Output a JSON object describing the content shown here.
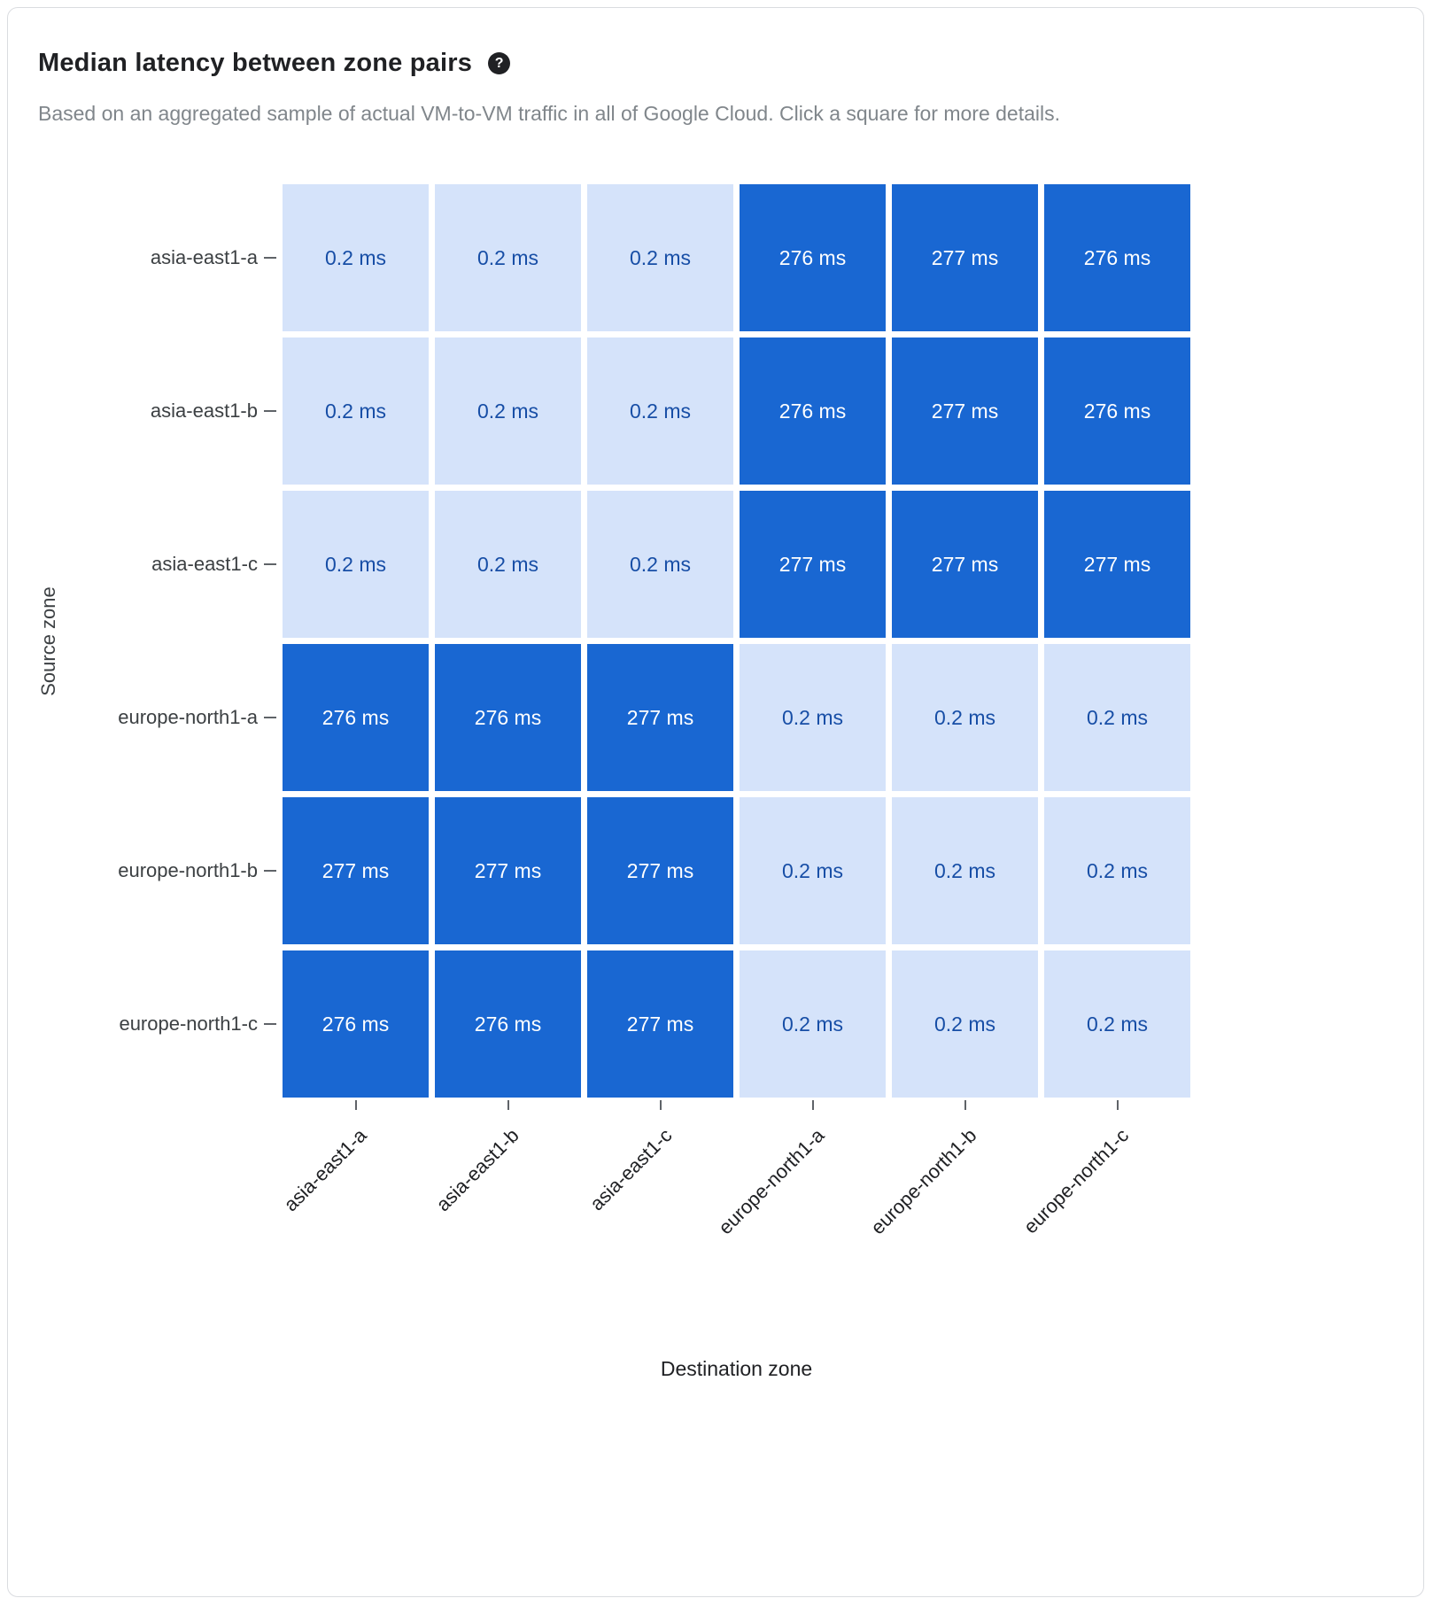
{
  "card": {
    "title": "Median latency between zone pairs",
    "help_glyph": "?",
    "subtitle": "Based on an aggregated sample of actual VM-to-VM traffic in all of Google Cloud. Click a square for more details."
  },
  "chart_data": {
    "type": "heatmap",
    "title": "Median latency between zone pairs",
    "xlabel": "Destination zone",
    "ylabel": "Source zone",
    "unit": "ms",
    "rows": [
      "asia-east1-a",
      "asia-east1-b",
      "asia-east1-c",
      "europe-north1-a",
      "europe-north1-b",
      "europe-north1-c"
    ],
    "columns": [
      "asia-east1-a",
      "asia-east1-b",
      "asia-east1-c",
      "europe-north1-a",
      "europe-north1-b",
      "europe-north1-c"
    ],
    "values_ms": [
      [
        0.2,
        0.2,
        0.2,
        276,
        277,
        276
      ],
      [
        0.2,
        0.2,
        0.2,
        276,
        277,
        276
      ],
      [
        0.2,
        0.2,
        0.2,
        277,
        277,
        277
      ],
      [
        276,
        276,
        277,
        0.2,
        0.2,
        0.2
      ],
      [
        277,
        277,
        277,
        0.2,
        0.2,
        0.2
      ],
      [
        276,
        276,
        277,
        0.2,
        0.2,
        0.2
      ]
    ],
    "cell_labels": [
      [
        "0.2 ms",
        "0.2 ms",
        "0.2 ms",
        "276 ms",
        "277 ms",
        "276 ms"
      ],
      [
        "0.2 ms",
        "0.2 ms",
        "0.2 ms",
        "276 ms",
        "277 ms",
        "276 ms"
      ],
      [
        "0.2 ms",
        "0.2 ms",
        "0.2 ms",
        "277 ms",
        "277 ms",
        "277 ms"
      ],
      [
        "276 ms",
        "276 ms",
        "277 ms",
        "0.2 ms",
        "0.2 ms",
        "0.2 ms"
      ],
      [
        "277 ms",
        "277 ms",
        "277 ms",
        "0.2 ms",
        "0.2 ms",
        "0.2 ms"
      ],
      [
        "276 ms",
        "276 ms",
        "277 ms",
        "0.2 ms",
        "0.2 ms",
        "0.2 ms"
      ]
    ],
    "colors": {
      "low_fill": "#d5e3fa",
      "high_fill": "#1967d2",
      "low_text": "#174ea6",
      "high_text": "#ffffff",
      "threshold_ms": 100
    },
    "legend_position": "none",
    "grid": false
  }
}
